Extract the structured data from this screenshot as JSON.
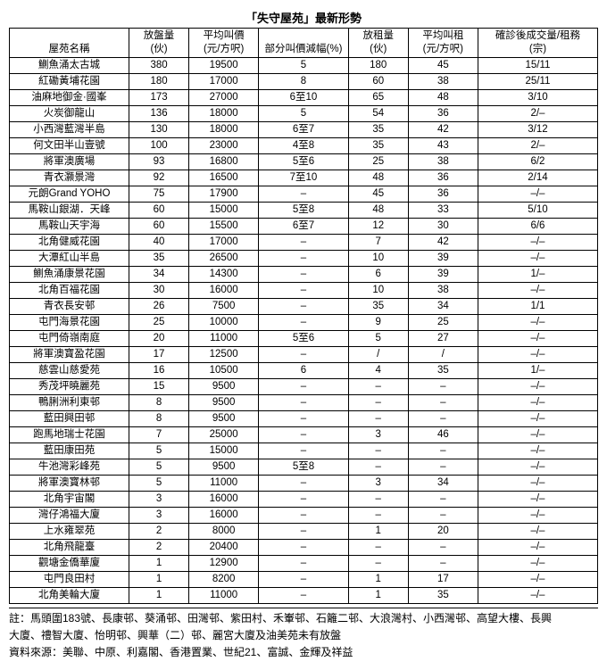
{
  "title": "「失守屋苑」最新形勢",
  "columns": [
    {
      "line1": "",
      "line2": "屋苑名稱"
    },
    {
      "line1": "放盤量",
      "line2": "(伙)"
    },
    {
      "line1": "平均叫價",
      "line2": "(元/方呎)"
    },
    {
      "line1": "",
      "line2": "部分叫價減幅(%)"
    },
    {
      "line1": "放租量",
      "line2": "(伙)"
    },
    {
      "line1": "平均叫租",
      "line2": "(元/方呎)"
    },
    {
      "line1": "確診後成交量/租務",
      "line2": "(宗)"
    }
  ],
  "rows": [
    [
      "鰂魚涌太古城",
      "380",
      "19500",
      "5",
      "180",
      "45",
      "15/11"
    ],
    [
      "紅磡黃埔花園",
      "180",
      "17000",
      "8",
      "60",
      "38",
      "25/11"
    ],
    [
      "油麻地御金·國峯",
      "173",
      "27000",
      "6至10",
      "65",
      "48",
      "3/10"
    ],
    [
      "火炭御龍山",
      "136",
      "18000",
      "5",
      "54",
      "36",
      "2/–"
    ],
    [
      "小西灣藍灣半島",
      "130",
      "18000",
      "6至7",
      "35",
      "42",
      "3/12"
    ],
    [
      "何文田半山壹號",
      "100",
      "23000",
      "4至8",
      "35",
      "43",
      "2/–"
    ],
    [
      "將軍澳廣場",
      "93",
      "16800",
      "5至6",
      "25",
      "38",
      "6/2"
    ],
    [
      "青衣灝景灣",
      "92",
      "16500",
      "7至10",
      "48",
      "36",
      "2/14"
    ],
    [
      "元朗Grand YOHO",
      "75",
      "17900",
      "–",
      "45",
      "36",
      "–/–"
    ],
    [
      "馬鞍山銀湖．天峰",
      "60",
      "15000",
      "5至8",
      "48",
      "33",
      "5/10"
    ],
    [
      "馬鞍山天宇海",
      "60",
      "15500",
      "6至7",
      "12",
      "30",
      "6/6"
    ],
    [
      "北角健威花園",
      "40",
      "17000",
      "–",
      "7",
      "42",
      "–/–"
    ],
    [
      "大潭紅山半島",
      "35",
      "26500",
      "–",
      "10",
      "39",
      "–/–"
    ],
    [
      "鰂魚涌康景花園",
      "34",
      "14300",
      "–",
      "6",
      "39",
      "1/–"
    ],
    [
      "北角百福花園",
      "30",
      "16000",
      "–",
      "10",
      "38",
      "–/–"
    ],
    [
      "青衣長安邨",
      "26",
      "7500",
      "–",
      "35",
      "34",
      "1/1"
    ],
    [
      "屯門海景花園",
      "25",
      "10000",
      "–",
      "9",
      "25",
      "–/–"
    ],
    [
      "屯門倚嶺南庭",
      "20",
      "11000",
      "5至6",
      "5",
      "27",
      "–/–"
    ],
    [
      "將軍澳寶盈花園",
      "17",
      "12500",
      "–",
      "/",
      "/",
      "–/–"
    ],
    [
      "慈雲山慈愛苑",
      "16",
      "10500",
      "6",
      "4",
      "35",
      "1/–"
    ],
    [
      "秀茂坪曉麗苑",
      "15",
      "9500",
      "–",
      "–",
      "–",
      "–/–"
    ],
    [
      "鴨脷洲利東邨",
      "8",
      "9500",
      "–",
      "–",
      "–",
      "–/–"
    ],
    [
      "藍田興田邨",
      "8",
      "9500",
      "–",
      "–",
      "–",
      "–/–"
    ],
    [
      "跑馬地瑞士花園",
      "7",
      "25000",
      "–",
      "3",
      "46",
      "–/–"
    ],
    [
      "藍田康田苑",
      "5",
      "15000",
      "–",
      "–",
      "–",
      "–/–"
    ],
    [
      "牛池灣彩峰苑",
      "5",
      "9500",
      "5至8",
      "–",
      "–",
      "–/–"
    ],
    [
      "將軍澳寶林邨",
      "5",
      "11000",
      "–",
      "3",
      "34",
      "–/–"
    ],
    [
      "北角宇宙閣",
      "3",
      "16000",
      "–",
      "–",
      "–",
      "–/–"
    ],
    [
      "灣仔鴻福大廈",
      "3",
      "16000",
      "–",
      "–",
      "–",
      "–/–"
    ],
    [
      "上水雍翠苑",
      "2",
      "8000",
      "–",
      "1",
      "20",
      "–/–"
    ],
    [
      "北角飛龍臺",
      "2",
      "20400",
      "–",
      "–",
      "–",
      "–/–"
    ],
    [
      "觀塘金僑華廈",
      "1",
      "12900",
      "–",
      "–",
      "–",
      "–/–"
    ],
    [
      "屯門良田村",
      "1",
      "8200",
      "–",
      "1",
      "17",
      "–/–"
    ],
    [
      "北角美輪大廈",
      "1",
      "11000",
      "–",
      "1",
      "35",
      "–/–"
    ]
  ],
  "footnote": {
    "line1": "註：馬頭圍183號、長康邨、葵涌邨、田灣邨、紫田村、禾輋邨、石籬二邨、大浪灣村、小西灣邨、高望大樓、長興",
    "line2": "大廈、禮智大廈、怡明邨、興華（二）邨、麗宮大廈及油美苑未有放盤",
    "line3": "資料來源：美聯、中原、利嘉閣、香港置業、世紀21、富誠、金輝及祥益"
  }
}
